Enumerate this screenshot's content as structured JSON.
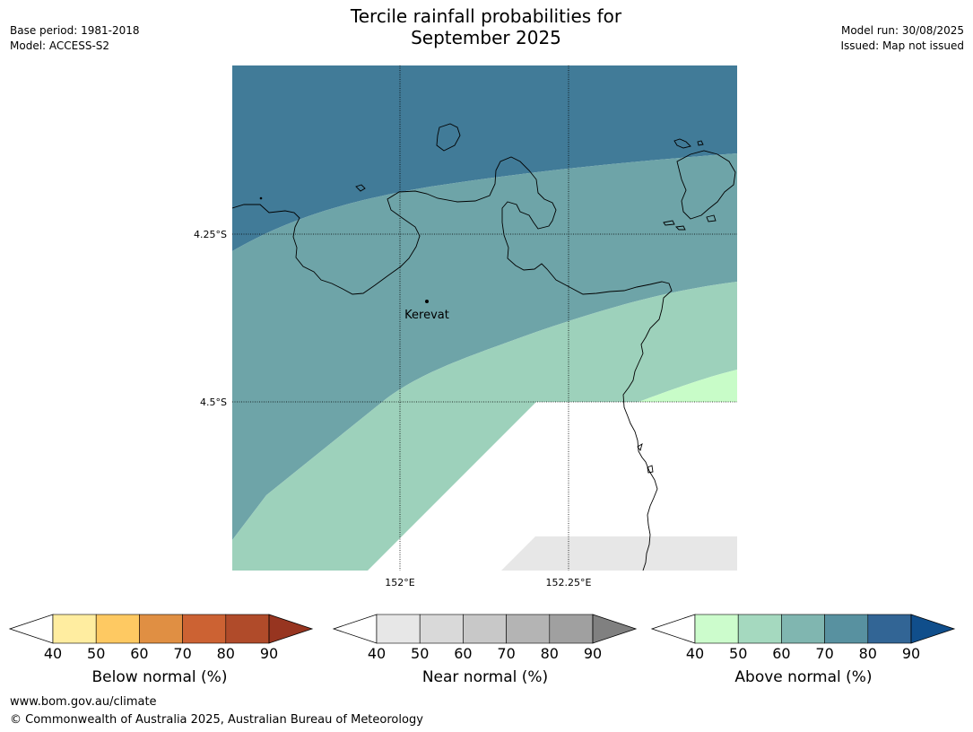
{
  "title_line1": "Tercile rainfall probabilities for",
  "title_line2": "September 2025",
  "base_period": "Base period: 1981-2018",
  "model": "Model: ACCESS-S2",
  "model_run": "Model run: 30/08/2025",
  "issued": "Issued: Map not issued",
  "map": {
    "place_label": "Kerevat",
    "lat_labels": [
      "4.25°S",
      "4.5°S"
    ],
    "lon_labels": [
      "152°E",
      "152.25°E"
    ],
    "zone_colors": {
      "above_80_90": "#417b98",
      "above_70_80": "#6ea4a8",
      "above_60_70": "#9dd1bb",
      "above_50_60": "#c8fcc8",
      "near_40_50": "#e7e7e7"
    }
  },
  "colorbars": [
    {
      "label": "Below normal (%)",
      "ticks": [
        "40",
        "50",
        "60",
        "70",
        "80",
        "90"
      ],
      "colors": [
        "#ffffff",
        "#ffeda0",
        "#fec962",
        "#e08f43",
        "#cc6233",
        "#b04b2a",
        "#973520"
      ]
    },
    {
      "label": "Near normal (%)",
      "ticks": [
        "40",
        "50",
        "60",
        "70",
        "80",
        "90"
      ],
      "colors": [
        "#ffffff",
        "#e7e7e7",
        "#d9d9d9",
        "#c8c8c8",
        "#b4b4b4",
        "#a0a0a0",
        "#808080"
      ]
    },
    {
      "label": "Above normal (%)",
      "ticks": [
        "40",
        "50",
        "60",
        "70",
        "80",
        "90"
      ],
      "colors": [
        "#ffffff",
        "#ccfccc",
        "#a5d9bf",
        "#80b6b0",
        "#5891a0",
        "#326595",
        "#104e8b"
      ]
    }
  ],
  "footer_url": "www.bom.gov.au/climate",
  "footer_copyright": "© Commonwealth of Australia 2025, Australian Bureau of Meteorology"
}
